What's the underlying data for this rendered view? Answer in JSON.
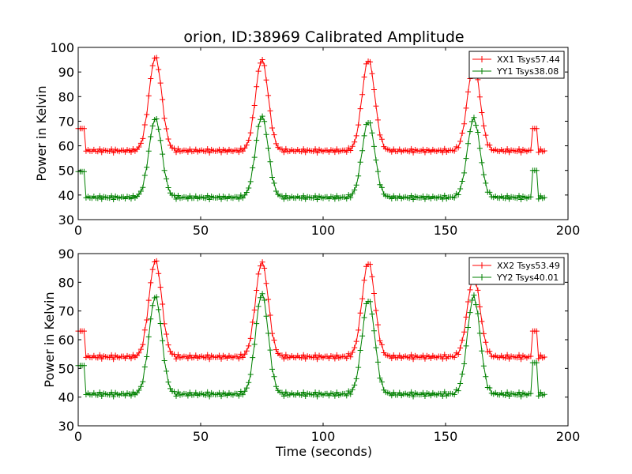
{
  "chart_data": [
    {
      "type": "line",
      "title": "orion, ID:38969 Calibrated Amplitude",
      "xlabel": "",
      "ylabel": "Power in Kelvin",
      "xlim": [
        0,
        200
      ],
      "ylim": [
        30,
        100
      ],
      "xticks": [
        "0",
        "50",
        "100",
        "150",
        "200"
      ],
      "yticks": [
        "30",
        "40",
        "50",
        "60",
        "70",
        "80",
        "90",
        "100"
      ],
      "legend_position": "top-right",
      "grid": false,
      "series": [
        {
          "name": "XX1 Tsys57.44",
          "color": "#ff0000",
          "marker": "+",
          "baseline": 58.0,
          "peaks": [
            [
              31.5,
              96
            ],
            [
              75,
              95
            ],
            [
              118.5,
              95
            ],
            [
              161.5,
              93
            ]
          ],
          "peak_width": 2.6,
          "blips": [
            [
              0,
              3,
              67
            ],
            [
              185,
              187.5,
              67
            ]
          ],
          "t_end": 191
        },
        {
          "name": "YY1 Tsys38.08",
          "color": "#008000",
          "marker": "+",
          "baseline": 39.0,
          "peaks": [
            [
              31.5,
              71
            ],
            [
              75,
              72
            ],
            [
              118.5,
              70
            ],
            [
              161.5,
              71
            ]
          ],
          "peak_width": 2.6,
          "blips": [
            [
              0,
              3,
              49.5
            ],
            [
              185,
              187.5,
              50
            ]
          ],
          "t_end": 191
        }
      ]
    },
    {
      "type": "line",
      "title": "",
      "xlabel": "Time (seconds)",
      "ylabel": "Power in Kelvin",
      "xlim": [
        0,
        200
      ],
      "ylim": [
        30,
        90
      ],
      "xticks": [
        "0",
        "50",
        "100",
        "150",
        "200"
      ],
      "yticks": [
        "30",
        "40",
        "50",
        "60",
        "70",
        "80",
        "90"
      ],
      "legend_position": "top-right",
      "grid": false,
      "series": [
        {
          "name": "XX2 Tsys53.49",
          "color": "#ff0000",
          "marker": "+",
          "baseline": 54.0,
          "peaks": [
            [
              31.5,
              87.5
            ],
            [
              75,
              87
            ],
            [
              118.5,
              87
            ],
            [
              161.5,
              82
            ]
          ],
          "peak_width": 2.6,
          "blips": [
            [
              0,
              3,
              63
            ],
            [
              185,
              187.5,
              63
            ]
          ],
          "t_end": 191
        },
        {
          "name": "YY2 Tsys40.01",
          "color": "#008000",
          "marker": "+",
          "baseline": 41.0,
          "peaks": [
            [
              31.5,
              75
            ],
            [
              75,
              76
            ],
            [
              118.5,
              74
            ],
            [
              161.5,
              75
            ]
          ],
          "peak_width": 2.6,
          "blips": [
            [
              0,
              3,
              51
            ],
            [
              185,
              187.5,
              52
            ]
          ],
          "t_end": 191
        }
      ]
    }
  ]
}
